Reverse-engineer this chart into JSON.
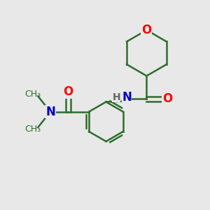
{
  "background_color": "#e8e8e8",
  "bond_color": "#2d6e2d",
  "bond_width": 1.8,
  "atom_colors": {
    "O": "#ff0000",
    "N": "#0000cc",
    "H": "#666666",
    "C": "#2d6e2d"
  },
  "font_size_atom": 11,
  "fig_bg": "#e8e8e8"
}
